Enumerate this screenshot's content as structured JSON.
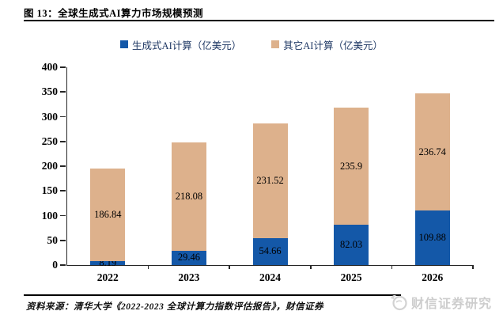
{
  "header": {
    "title": "图 13：全球生成式AI算力市场规模预测"
  },
  "legend": [
    {
      "label": "生成式AI计算（亿美元）",
      "color": "#1458A8"
    },
    {
      "label": "其它AI计算（亿美元）",
      "color": "#DDB18C"
    }
  ],
  "chart_data": {
    "type": "bar",
    "stacked": true,
    "title": "全球生成式AI算力市场规模预测",
    "categories": [
      "2022",
      "2023",
      "2024",
      "2025",
      "2026"
    ],
    "series": [
      {
        "name": "生成式AI计算（亿美元）",
        "color": "#1458A8",
        "values": [
          8.19,
          29.46,
          54.66,
          82.03,
          109.88
        ]
      },
      {
        "name": "其它AI计算（亿美元）",
        "color": "#DDB18C",
        "values": [
          186.84,
          218.08,
          231.52,
          235.9,
          236.74
        ]
      }
    ],
    "ylim": [
      0,
      400
    ],
    "ytick_step": 50,
    "grid": false,
    "legend_position": "top",
    "value_labels": true,
    "unit": "亿美元"
  },
  "footer": {
    "source": "资料来源：清华大学《2022-2023 全球计算力指数评估报告》，财信证券"
  },
  "watermark": {
    "text": "财信证券研究"
  }
}
